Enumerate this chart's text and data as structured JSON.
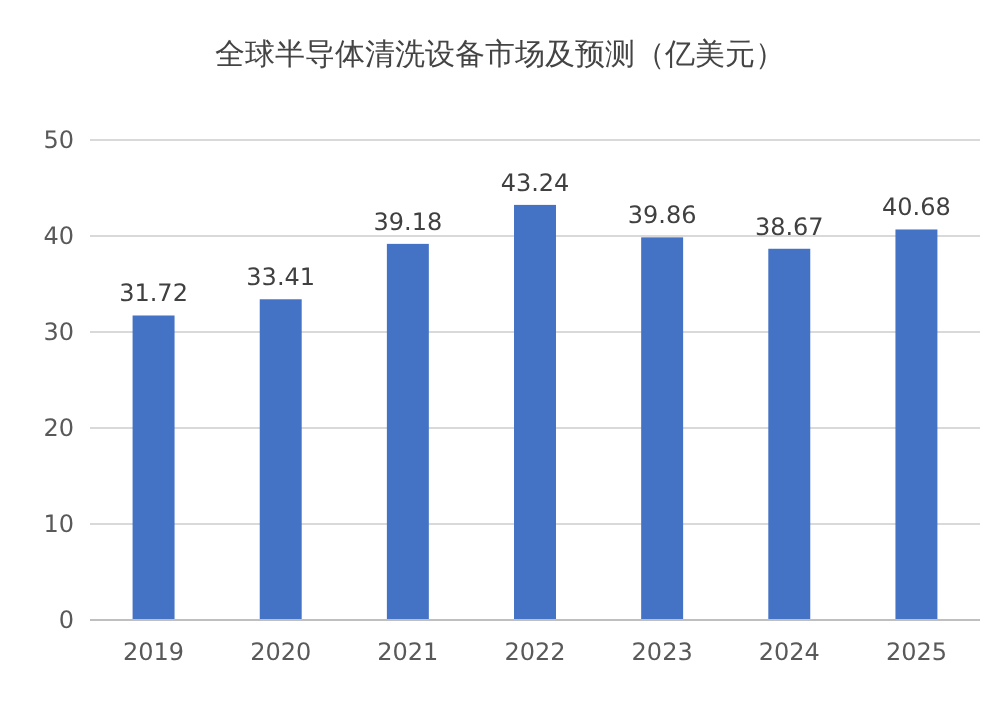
{
  "chart_data": {
    "type": "bar",
    "title": "全球半导体清洗设备市场及预测（亿美元）",
    "categories": [
      "2019",
      "2020",
      "2021",
      "2022",
      "2023",
      "2024",
      "2025"
    ],
    "values": [
      31.72,
      33.41,
      39.18,
      43.24,
      39.86,
      38.67,
      40.68
    ],
    "color": "#4472c4",
    "ylim": [
      0,
      50
    ],
    "yticks": [
      0,
      10,
      20,
      30,
      40,
      50
    ],
    "grid": "y",
    "data_labels": true
  }
}
